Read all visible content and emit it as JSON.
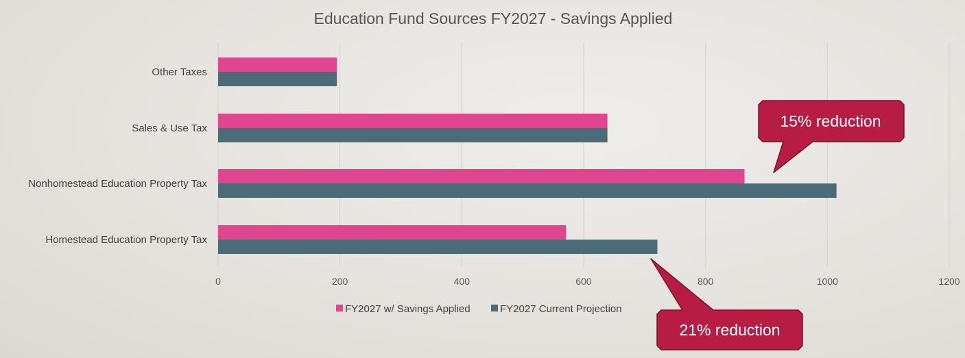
{
  "chart_data": {
    "type": "bar",
    "orientation": "horizontal",
    "title": "Education Fund Sources FY2027 - Savings Applied",
    "categories": [
      "Other Taxes",
      "Sales & Use Tax",
      "Nonhomestead Education Property Tax",
      "Homestead Education Property Tax"
    ],
    "series": [
      {
        "name": "FY2027 w/ Savings Applied",
        "color": "#de4690",
        "values": [
          195,
          639,
          864,
          571
        ]
      },
      {
        "name": "FY2027 Current Projection",
        "color": "#4c6b78",
        "values": [
          195,
          639,
          1015,
          721
        ]
      }
    ],
    "xlim": [
      0,
      1200
    ],
    "x_ticks": [
      "0",
      "200",
      "400",
      "600",
      "800",
      "1000",
      "1200"
    ],
    "grid": true,
    "legend_position": "bottom",
    "annotations": [
      {
        "text": "15% reduction",
        "category": "Nonhomestead Education Property Tax"
      },
      {
        "text": "21% reduction",
        "category": "Homestead Education Property Tax"
      }
    ],
    "callout_color": "#b71c44"
  }
}
